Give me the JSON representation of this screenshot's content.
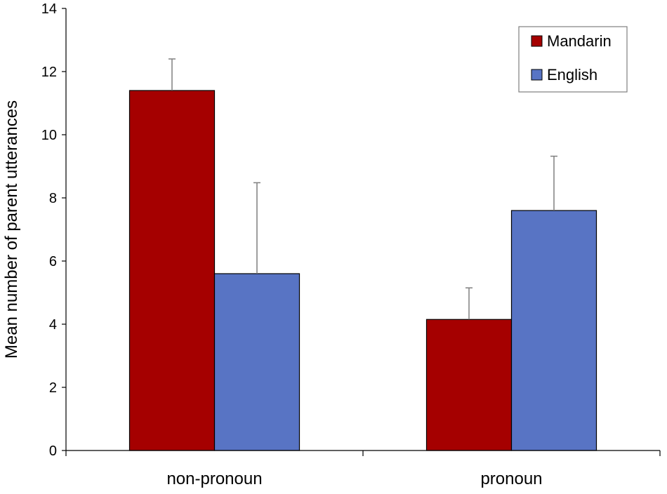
{
  "chart_data": {
    "type": "bar",
    "categories": [
      "non-pronoun",
      "pronoun"
    ],
    "series": [
      {
        "name": "Mandarin",
        "color": "#A50000",
        "values": [
          11.4,
          4.15
        ],
        "error_upper": [
          12.4,
          5.15
        ]
      },
      {
        "name": "English",
        "color": "#5874C4",
        "values": [
          5.6,
          7.6
        ],
        "error_upper": [
          8.48,
          9.32
        ]
      }
    ],
    "ylabel": "Mean number of parent utterances",
    "ylim": [
      0,
      14
    ],
    "yticks": [
      "0",
      "2",
      "4",
      "6",
      "8",
      "10",
      "12",
      "14"
    ],
    "legend_placement": "top-right",
    "grid": false
  }
}
